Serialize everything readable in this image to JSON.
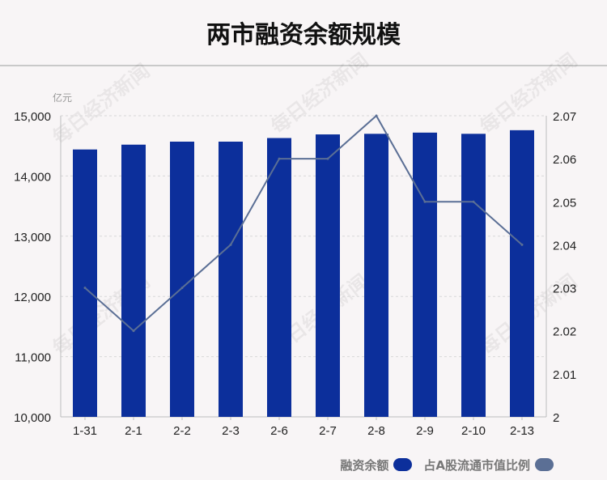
{
  "chart_data": {
    "type": "bar",
    "title": "两市融资余额规模",
    "y_unit_label": "亿元",
    "categories": [
      "1-31",
      "2-1",
      "2-2",
      "2-3",
      "2-6",
      "2-7",
      "2-8",
      "2-9",
      "2-10",
      "2-13"
    ],
    "series": [
      {
        "name": "融资余额",
        "type": "bar",
        "axis": "left",
        "color": "#0c2f9b",
        "values": [
          14440,
          14520,
          14570,
          14570,
          14630,
          14690,
          14700,
          14720,
          14700,
          14760
        ]
      },
      {
        "name": "占A股流通市值比例",
        "type": "line",
        "axis": "right",
        "color": "#5b6f95",
        "values": [
          2.03,
          2.02,
          2.03,
          2.04,
          2.06,
          2.06,
          2.07,
          2.05,
          2.05,
          2.04
        ]
      }
    ],
    "y_left": {
      "min": 10000,
      "max": 15000,
      "ticks": [
        "10,000",
        "11,000",
        "12,000",
        "13,000",
        "14,000",
        "15,000"
      ]
    },
    "y_right": {
      "min": 2.0,
      "max": 2.07,
      "ticks": [
        "2",
        "2.01",
        "2.02",
        "2.03",
        "2.04",
        "2.05",
        "2.06",
        "2.07"
      ]
    },
    "grid": true,
    "legend_position": "bottom-right"
  },
  "watermark": "每日经济新闻"
}
